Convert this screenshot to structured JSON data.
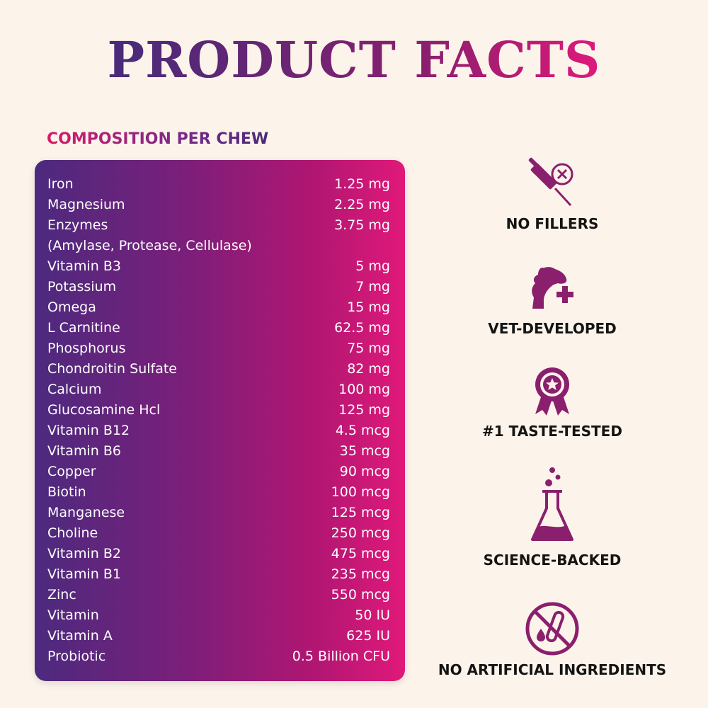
{
  "header": {
    "title": "PRODUCT FACTS"
  },
  "composition": {
    "title": "COMPOSITION PER CHEW",
    "rows": [
      {
        "name": " Iron",
        "amount": "1.25 mg"
      },
      {
        "name": "Magnesium",
        "amount": "2.25 mg"
      },
      {
        "name": "Enzymes",
        "amount": "3.75 mg"
      },
      {
        "name": "(Amylase, Protease, Cellulase)",
        "amount": ""
      },
      {
        "name": "Vitamin B3",
        "amount": "5 mg"
      },
      {
        "name": "Potassium",
        "amount": "7 mg"
      },
      {
        "name": "Omega",
        "amount": "15 mg"
      },
      {
        "name": "L Carnitine",
        "amount": "62.5 mg"
      },
      {
        "name": "Phosphorus",
        "amount": "75 mg"
      },
      {
        "name": "Chondroitin Sulfate",
        "amount": "82 mg"
      },
      {
        "name": "Calcium",
        "amount": "100 mg"
      },
      {
        "name": "Glucosamine Hcl",
        "amount": "125 mg"
      },
      {
        "name": "Vitamin B12",
        "amount": "4.5 mcg"
      },
      {
        "name": "Vitamin B6",
        "amount": "35 mcg"
      },
      {
        "name": "Copper",
        "amount": "90 mcg"
      },
      {
        "name": "Biotin",
        "amount": "100 mcg"
      },
      {
        "name": "Manganese",
        "amount": "125 mcg"
      },
      {
        "name": "Choline",
        "amount": "250 mcg"
      },
      {
        "name": "Vitamin B2",
        "amount": "475 mcg"
      },
      {
        "name": "Vitamin B1",
        "amount": "235 mcg"
      },
      {
        "name": "Zinc",
        "amount": "550 mcg"
      },
      {
        "name": "Vitamin",
        "amount": "50 IU"
      },
      {
        "name": "Vitamin A",
        "amount": "625 IU"
      },
      {
        "name": "Probiotic",
        "amount": "0.5 Billion CFU"
      }
    ]
  },
  "features": [
    {
      "label": "NO FILLERS",
      "icon": "no-syringe-icon"
    },
    {
      "label": "VET-DEVELOPED",
      "icon": "vet-dog-icon"
    },
    {
      "label": "#1 TASTE-TESTED",
      "icon": "award-ribbon-icon"
    },
    {
      "label": "SCIENCE-BACKED",
      "icon": "flask-icon"
    },
    {
      "label": "NO ARTIFICIAL INGREDIENTS",
      "icon": "no-test-tube-icon"
    }
  ],
  "colors": {
    "background": "#fcf4ea",
    "accent_purple": "#4c2a7e",
    "accent_pink": "#e0197a",
    "icon": "#8a1f6e"
  }
}
